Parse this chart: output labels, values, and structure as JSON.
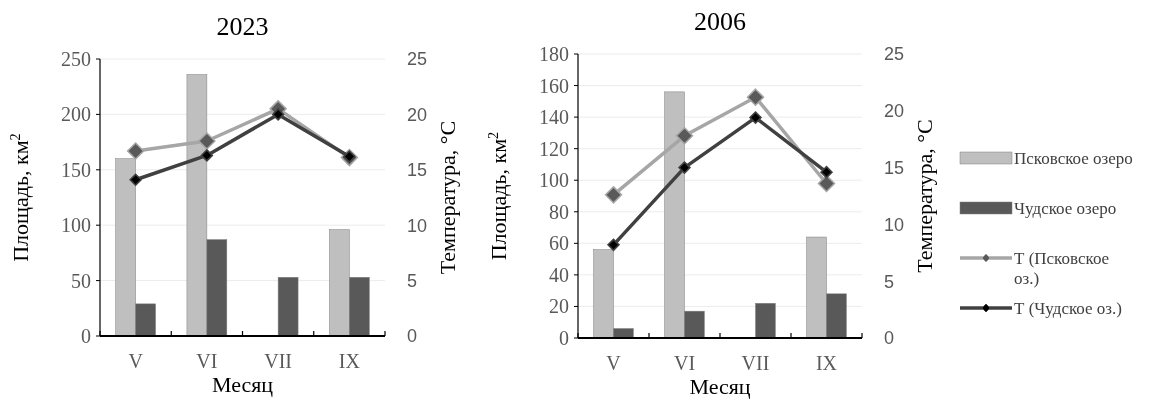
{
  "chart_data": [
    {
      "type": "bar",
      "title": "2023",
      "xlabel": "Месяц",
      "ylabel": "Площадь, км$^{2}$",
      "y2label": "Температура, °C",
      "categories": [
        "V",
        "VI",
        "VII",
        "IX"
      ],
      "ylim": [
        0,
        250
      ],
      "yticks": [
        0,
        50,
        100,
        150,
        200,
        250
      ],
      "y2lim": [
        0,
        25
      ],
      "y2ticks": [
        0,
        5,
        10,
        15,
        20,
        25
      ],
      "grid": "y",
      "series": [
        {
          "color": "#bfbfbf",
          "values": [
            160,
            236,
            null,
            96
          ]
        },
        {
          "color": "#595959",
          "values": [
            29,
            87,
            53,
            53
          ]
        },
        {
          "type": "line",
          "axis": "y2",
          "marker": "diamond",
          "color": "#a6a6a6",
          "values": [
            16.7,
            17.6,
            20.5,
            16.1
          ]
        },
        {
          "type": "line",
          "axis": "y2",
          "marker": "diamond",
          "color": "#404040",
          "values": [
            14.1,
            16.3,
            20.0,
            16.2
          ]
        }
      ]
    },
    {
      "type": "bar",
      "title": "2006",
      "xlabel": "Месяц",
      "ylabel": "Площадь, км$^{2}$",
      "y2label": "Температура, °C",
      "categories": [
        "V",
        "VI",
        "VII",
        "IX"
      ],
      "ylim": [
        0,
        180
      ],
      "yticks": [
        0,
        20,
        40,
        60,
        80,
        100,
        120,
        140,
        160,
        180
      ],
      "y2lim": [
        0,
        25
      ],
      "y2ticks": [
        0,
        5,
        10,
        15,
        20,
        25
      ],
      "grid": "y",
      "legend": "right",
      "series": [
        {
          "name": "Псковское озеро",
          "color": "#bfbfbf",
          "values": [
            56,
            156,
            null,
            64
          ]
        },
        {
          "name": "Чудское озеро",
          "color": "#595959",
          "values": [
            6,
            17,
            22,
            28
          ]
        },
        {
          "name": "Т (Псковское оз.)",
          "type": "line",
          "axis": "y2",
          "marker": "diamond",
          "color": "#a6a6a6",
          "values": [
            12.6,
            17.8,
            21.2,
            13.6
          ]
        },
        {
          "name": "Т (Чудское оз.)",
          "type": "line",
          "axis": "y2",
          "marker": "diamond",
          "color": "#404040",
          "values": [
            8.2,
            15.0,
            19.4,
            14.6
          ]
        }
      ]
    }
  ]
}
